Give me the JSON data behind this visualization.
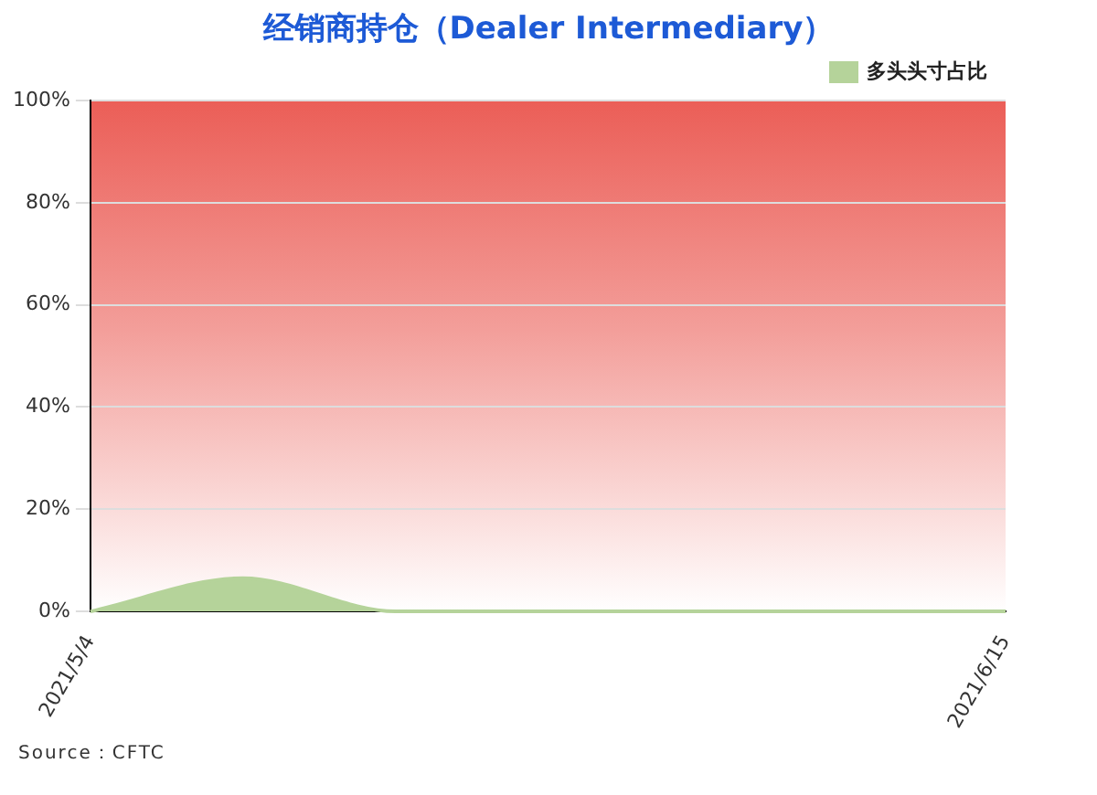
{
  "chart_data": {
    "type": "area",
    "title": "经销商持仓（Dealer Intermediary）",
    "categories": [
      "2021/5/4",
      null,
      null,
      null,
      null,
      null,
      "2021/6/15"
    ],
    "series": [
      {
        "name": "多头头寸占比",
        "color": "#b5d39a",
        "values": [
          0,
          6.5,
          0,
          0,
          0,
          0,
          0
        ]
      }
    ],
    "ylim": [
      0,
      100
    ],
    "yticks": [
      {
        "value": 0,
        "label": "0%"
      },
      {
        "value": 20,
        "label": "20%"
      },
      {
        "value": 40,
        "label": "40%"
      },
      {
        "value": 60,
        "label": "60%"
      },
      {
        "value": 80,
        "label": "80%"
      },
      {
        "value": 100,
        "label": "100%"
      }
    ],
    "grid": "y",
    "legend": "top right",
    "marker": "none",
    "annotations": [
      "Source：CFTC"
    ]
  }
}
